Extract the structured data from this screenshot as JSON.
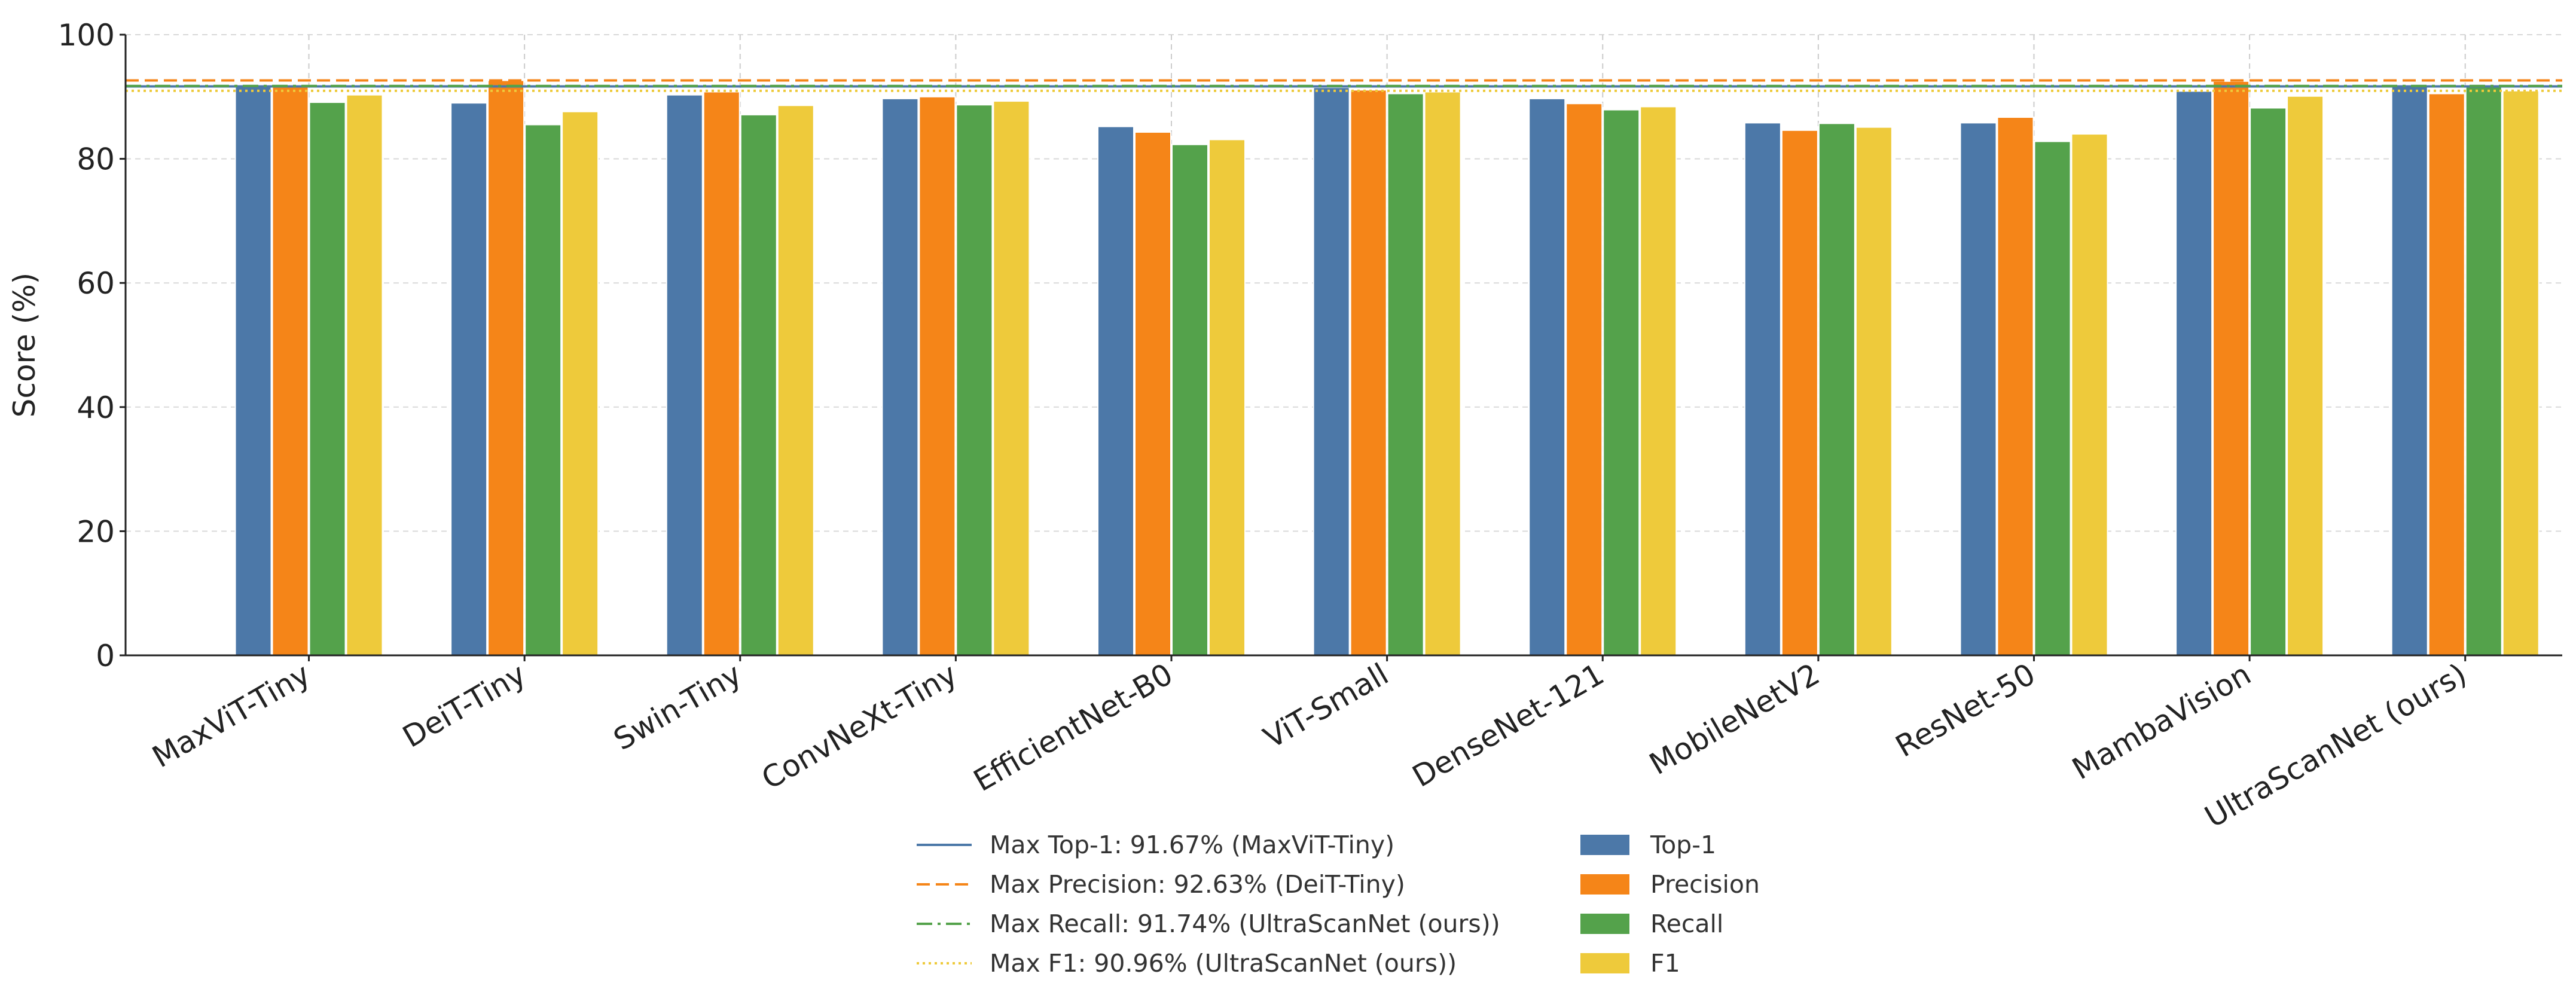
{
  "chart_data": {
    "type": "bar",
    "title": "",
    "xlabel": "",
    "ylabel": "Score (%)",
    "ylim": [
      0,
      100
    ],
    "yticks": [
      "0",
      "20",
      "40",
      "60",
      "80",
      "100"
    ],
    "grid": true,
    "legend_position": "bottom-center",
    "categories": [
      "MaxViT-Tiny",
      "DeiT-Tiny",
      "Swin-Tiny",
      "ConvNeXt-Tiny",
      "EfficientNet-B0",
      "ViT-Small",
      "DenseNet-121",
      "MobileNetV2",
      "ResNet-50",
      "MambaVision",
      "UltraScanNet (ours)"
    ],
    "series": [
      {
        "name": "Top-1",
        "color": "#4c78a8",
        "values": [
          91.67,
          89.0,
          90.3,
          89.7,
          85.2,
          91.5,
          89.7,
          85.8,
          85.8,
          90.9,
          91.6
        ]
      },
      {
        "name": "Precision",
        "color": "#f58518",
        "values": [
          91.7,
          92.63,
          90.8,
          90.0,
          84.3,
          91.1,
          88.9,
          84.6,
          86.7,
          92.5,
          90.5
        ]
      },
      {
        "name": "Recall",
        "color": "#54a24b",
        "values": [
          89.1,
          85.5,
          87.1,
          88.7,
          82.3,
          90.5,
          87.9,
          85.7,
          82.8,
          88.2,
          91.74
        ]
      },
      {
        "name": "F1",
        "color": "#eeca3b",
        "values": [
          90.3,
          87.6,
          88.6,
          89.3,
          83.1,
          90.8,
          88.4,
          85.1,
          84.0,
          90.1,
          90.96
        ]
      }
    ],
    "reference_lines": [
      {
        "label": "Max Top-1: 91.67% (MaxViT-Tiny)",
        "value": 91.67,
        "color": "#4c78a8",
        "style": "solid"
      },
      {
        "label": "Max Precision: 92.63% (DeiT-Tiny)",
        "value": 92.63,
        "color": "#f58518",
        "style": "dashed"
      },
      {
        "label": "Max Recall: 91.74% (UltraScanNet (ours))",
        "value": 91.74,
        "color": "#54a24b",
        "style": "dashdot"
      },
      {
        "label": "Max F1: 90.96% (UltraScanNet (ours))",
        "value": 90.96,
        "color": "#eeca3b",
        "style": "dotted"
      }
    ]
  }
}
